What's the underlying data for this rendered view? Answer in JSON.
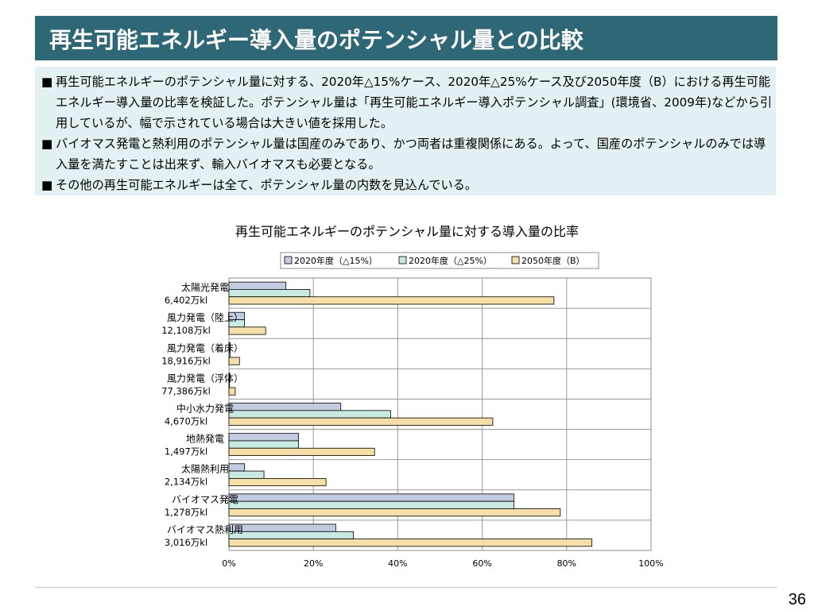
{
  "slide": {
    "title": "再生可能エネルギー導入量のポテンシャル量との比較",
    "bullets": [
      "再生可能エネルギーのポテンシャル量に対する、2020年△15%ケース、2020年△25%ケース及び2050年度（B）における再生可能エネルギー導入量の比率を検証した。ポテンシャル量は「再生可能エネルギー導入ポテンシャル調査」(環境省、2009年)などから引用しているが、幅で示されている場合は大きい値を採用した。",
      "バイオマス発電と熱利用のポテンシャル量は国産のみであり、かつ両者は重複関係にある。よって、国産のポテンシャルのみでは導入量を満たすことは出来ず、輸入バイオマスも必要となる。",
      "その他の再生可能エネルギーは全て、ポテンシャル量の内数を見込んでいる。"
    ],
    "bullet_mark": "■",
    "page_number": "36"
  },
  "chart_data": {
    "type": "bar",
    "orientation": "horizontal",
    "title": "再生可能エネルギーのポテンシャル量に対する導入量の比率",
    "categories": [
      [
        "太陽光発電",
        "6,402万kl"
      ],
      [
        "風力発電（陸上）",
        "12,108万kl"
      ],
      [
        "風力発電（着床）",
        "18,916万kl"
      ],
      [
        "風力発電（浮体）",
        "77,386万kl"
      ],
      [
        "中小水力発電",
        "4,670万kl"
      ],
      [
        "地熱発電",
        "1,497万kl"
      ],
      [
        "太陽熱利用",
        "2,134万kl"
      ],
      [
        "バイオマス発電",
        "1,278万kl"
      ],
      [
        "バイオマス熱利用",
        "3,016万kl"
      ]
    ],
    "series": [
      {
        "name": "2020年度（△15%）",
        "color": "#c3cbe0",
        "values": [
          13.5,
          3.7,
          0.3,
          0.1,
          26.5,
          16.5,
          3.7,
          67.5,
          25.3
        ]
      },
      {
        "name": "2020年度（△25%）",
        "color": "#c9eae3",
        "values": [
          19.2,
          3.7,
          0.3,
          0.1,
          38.3,
          16.5,
          8.3,
          67.5,
          29.5
        ]
      },
      {
        "name": "2050年度（B）",
        "color": "#f5dfa6",
        "values": [
          77.0,
          8.7,
          2.5,
          1.5,
          62.5,
          34.5,
          23.0,
          78.5,
          86.0
        ]
      }
    ],
    "xlim": [
      0,
      100
    ],
    "xticks": [
      "0%",
      "20%",
      "40%",
      "60%",
      "80%",
      "100%"
    ],
    "grid": true,
    "legend_position": "top"
  }
}
